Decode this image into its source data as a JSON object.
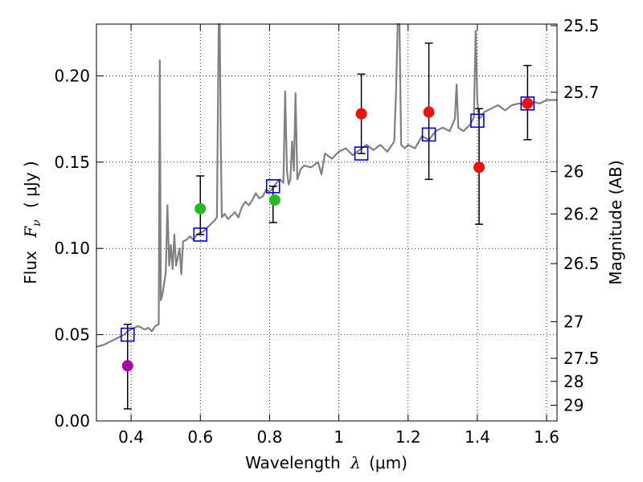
{
  "chart_data": {
    "type": "scatter",
    "xlabel_text": "Wavelength",
    "xlabel_symbol": "λ",
    "xlabel_unit": "(μm)",
    "ylabel_text": "Flux",
    "ylabel_symbol": "F",
    "ylabel_subscript": "ν",
    "ylabel_unit": "( μJy )",
    "y2label": "Magnitude (AB)",
    "xlim": [
      0.3,
      1.63
    ],
    "ylim": [
      0.0,
      0.23
    ],
    "x_ticks": [
      0.4,
      0.6,
      0.8,
      1.0,
      1.2,
      1.4,
      1.6
    ],
    "x_tick_labels": [
      "0.4",
      "0.6",
      "0.8",
      "1",
      "1.2",
      "1.4",
      "1.6"
    ],
    "y_ticks": [
      0.0,
      0.05,
      0.1,
      0.15,
      0.2
    ],
    "y_tick_labels": [
      "0.00",
      "0.05",
      "0.10",
      "0.15",
      "0.20"
    ],
    "mag_ticks": [
      {
        "flux": 0.2291,
        "label": "25.5"
      },
      {
        "flux": 0.1905,
        "label": "25.7"
      },
      {
        "flux": 0.1445,
        "label": "26"
      },
      {
        "flux": 0.12,
        "label": "26.2"
      },
      {
        "flux": 0.0912,
        "label": "26.5"
      },
      {
        "flux": 0.0575,
        "label": "27"
      },
      {
        "flux": 0.0363,
        "label": "27.5"
      },
      {
        "flux": 0.0229,
        "label": "28"
      },
      {
        "flux": 0.0091,
        "label": "29"
      }
    ],
    "grid": true,
    "series": [
      {
        "name": "model_spectrum",
        "kind": "line",
        "color": "#808080",
        "x": [
          0.3,
          0.32,
          0.34,
          0.36,
          0.37,
          0.38,
          0.39,
          0.4,
          0.41,
          0.42,
          0.43,
          0.44,
          0.45,
          0.46,
          0.47,
          0.48,
          0.483,
          0.486,
          0.489,
          0.492,
          0.5,
          0.505,
          0.51,
          0.515,
          0.52,
          0.525,
          0.53,
          0.54,
          0.545,
          0.55,
          0.56,
          0.57,
          0.58,
          0.59,
          0.6,
          0.61,
          0.62,
          0.63,
          0.64,
          0.648,
          0.653,
          0.656,
          0.659,
          0.662,
          0.67,
          0.68,
          0.69,
          0.7,
          0.71,
          0.72,
          0.73,
          0.74,
          0.75,
          0.76,
          0.77,
          0.78,
          0.79,
          0.8,
          0.81,
          0.82,
          0.83,
          0.84,
          0.845,
          0.85,
          0.855,
          0.86,
          0.865,
          0.87,
          0.875,
          0.88,
          0.89,
          0.9,
          0.92,
          0.94,
          0.95,
          0.96,
          0.98,
          1.0,
          1.02,
          1.04,
          1.06,
          1.08,
          1.1,
          1.12,
          1.14,
          1.16,
          1.165,
          1.17,
          1.175,
          1.18,
          1.19,
          1.2,
          1.22,
          1.24,
          1.26,
          1.28,
          1.3,
          1.32,
          1.335,
          1.34,
          1.345,
          1.36,
          1.38,
          1.39,
          1.395,
          1.4,
          1.405,
          1.41,
          1.42,
          1.44,
          1.46,
          1.48,
          1.5,
          1.52,
          1.54,
          1.56,
          1.58,
          1.6,
          1.63
        ],
        "y": [
          0.043,
          0.044,
          0.046,
          0.048,
          0.049,
          0.05,
          0.052,
          0.053,
          0.054,
          0.055,
          0.054,
          0.053,
          0.054,
          0.052,
          0.055,
          0.056,
          0.209,
          0.07,
          0.072,
          0.075,
          0.086,
          0.125,
          0.09,
          0.102,
          0.088,
          0.108,
          0.09,
          0.1,
          0.085,
          0.104,
          0.105,
          0.107,
          0.105,
          0.108,
          0.109,
          0.11,
          0.112,
          0.114,
          0.116,
          0.118,
          0.23,
          0.23,
          0.16,
          0.118,
          0.12,
          0.117,
          0.119,
          0.121,
          0.118,
          0.124,
          0.127,
          0.125,
          0.128,
          0.132,
          0.129,
          0.13,
          0.134,
          0.133,
          0.135,
          0.138,
          0.14,
          0.138,
          0.191,
          0.145,
          0.137,
          0.14,
          0.162,
          0.145,
          0.19,
          0.14,
          0.146,
          0.148,
          0.147,
          0.15,
          0.143,
          0.155,
          0.152,
          0.156,
          0.158,
          0.154,
          0.157,
          0.16,
          0.157,
          0.16,
          0.156,
          0.162,
          0.19,
          0.23,
          0.23,
          0.16,
          0.158,
          0.16,
          0.158,
          0.165,
          0.163,
          0.168,
          0.17,
          0.168,
          0.175,
          0.195,
          0.17,
          0.168,
          0.172,
          0.176,
          0.226,
          0.185,
          0.175,
          0.176,
          0.179,
          0.181,
          0.183,
          0.18,
          0.183,
          0.184,
          0.183,
          0.185,
          0.184,
          0.186,
          0.186
        ]
      },
      {
        "name": "model_photometry",
        "kind": "open-square",
        "color": "#0000cc",
        "x": [
          0.39,
          0.6,
          0.81,
          1.065,
          1.26,
          1.4,
          1.545
        ],
        "y": [
          0.05,
          0.108,
          0.136,
          0.155,
          0.166,
          0.174,
          0.184
        ]
      },
      {
        "name": "observed_photometry",
        "kind": "filled-circle",
        "x": [
          0.39,
          0.6,
          0.815,
          1.065,
          1.26,
          1.405,
          1.545
        ],
        "y": [
          0.032,
          0.123,
          0.128,
          0.178,
          0.179,
          0.147,
          0.184
        ],
        "colors": [
          "#aa00aa",
          "#22bb22",
          "#22bb22",
          "#ee1111",
          "#ee1111",
          "#ee1111",
          "#ee1111"
        ]
      },
      {
        "name": "error_bars",
        "kind": "errorbar",
        "color": "#000000",
        "x": [
          0.39,
          0.6,
          0.81,
          1.065,
          1.26,
          1.405,
          1.545
        ],
        "y_low": [
          0.007,
          0.108,
          0.115,
          0.155,
          0.14,
          0.114,
          0.163
        ],
        "y_high": [
          0.056,
          0.142,
          0.136,
          0.201,
          0.219,
          0.181,
          0.206
        ]
      }
    ]
  }
}
